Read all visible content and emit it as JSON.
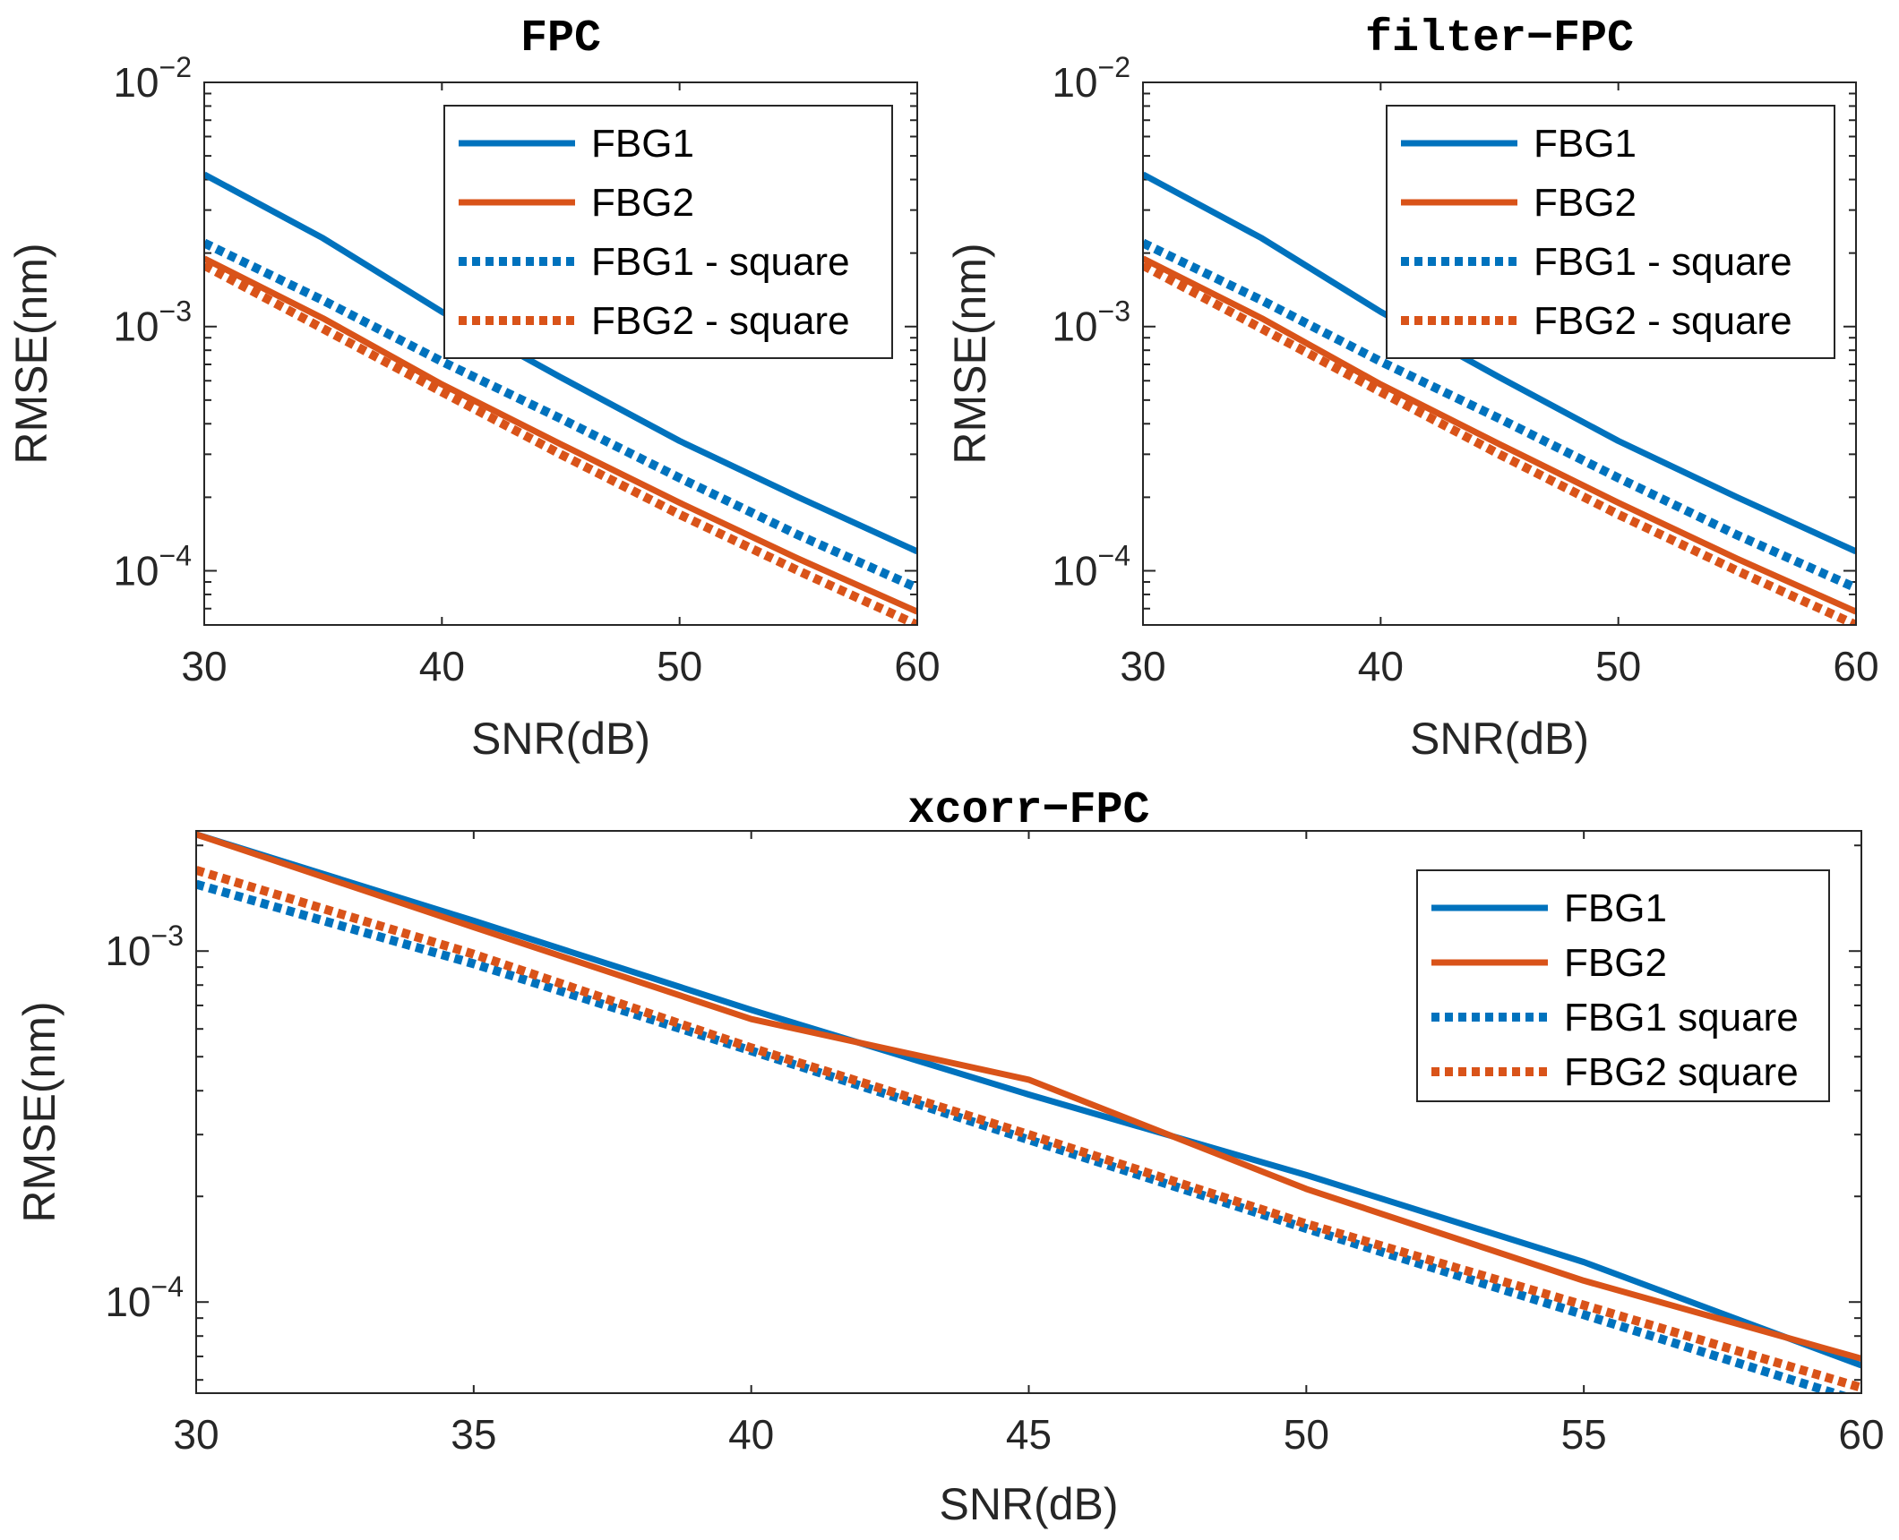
{
  "chart_data": [
    {
      "type": "line",
      "title": "FPC",
      "xlabel": "SNR(dB)",
      "ylabel": "RMSE(nm)",
      "yscale": "log",
      "xlim": [
        30,
        60
      ],
      "ylim": [
        6e-05,
        0.01
      ],
      "xticks": [
        "30",
        "40",
        "50",
        "60"
      ],
      "yticks": [
        {
          "base": "10",
          "exp": "−2"
        },
        {
          "base": "10",
          "exp": "−3"
        },
        {
          "base": "10",
          "exp": "−4"
        }
      ],
      "legend_position": "top-right",
      "x": [
        30,
        35,
        40,
        45,
        50,
        55,
        60
      ],
      "series": [
        {
          "name": "FBG1",
          "style": "solid",
          "color": "#0072BD",
          "values": [
            0.0042,
            0.0023,
            0.00115,
            0.00062,
            0.00034,
            0.0002,
            0.00012
          ]
        },
        {
          "name": "FBG2",
          "style": "solid",
          "color": "#D95319",
          "values": [
            0.0019,
            0.00108,
            0.00058,
            0.00033,
            0.00019,
            0.000112,
            6.8e-05
          ]
        },
        {
          "name": "FBG1 - square",
          "style": "dotted",
          "color": "#0072BD",
          "values": [
            0.0022,
            0.00128,
            0.00072,
            0.00042,
            0.00024,
            0.00014,
            8.5e-05
          ]
        },
        {
          "name": "FBG2 - square",
          "style": "dotted",
          "color": "#D95319",
          "values": [
            0.00178,
            0.00098,
            0.00054,
            0.0003,
            0.00017,
            0.0001,
            6e-05
          ]
        }
      ]
    },
    {
      "type": "line",
      "title": "filter−FPC",
      "xlabel": "SNR(dB)",
      "ylabel": "RMSE(nm)",
      "yscale": "log",
      "xlim": [
        30,
        60
      ],
      "ylim": [
        6e-05,
        0.01
      ],
      "xticks": [
        "30",
        "40",
        "50",
        "60"
      ],
      "yticks": [
        {
          "base": "10",
          "exp": "−2"
        },
        {
          "base": "10",
          "exp": "−3"
        },
        {
          "base": "10",
          "exp": "−4"
        }
      ],
      "legend_position": "top-right",
      "x": [
        30,
        35,
        40,
        45,
        50,
        55,
        60
      ],
      "series": [
        {
          "name": "FBG1",
          "style": "solid",
          "color": "#0072BD",
          "values": [
            0.0042,
            0.0023,
            0.00115,
            0.00062,
            0.00034,
            0.0002,
            0.00012
          ]
        },
        {
          "name": "FBG2",
          "style": "solid",
          "color": "#D95319",
          "values": [
            0.0019,
            0.00108,
            0.00058,
            0.00033,
            0.00019,
            0.000112,
            6.8e-05
          ]
        },
        {
          "name": "FBG1 - square",
          "style": "dotted",
          "color": "#0072BD",
          "values": [
            0.0022,
            0.00128,
            0.00072,
            0.00042,
            0.00024,
            0.00014,
            8.5e-05
          ]
        },
        {
          "name": "FBG2 - square",
          "style": "dotted",
          "color": "#D95319",
          "values": [
            0.00178,
            0.00098,
            0.00054,
            0.0003,
            0.00017,
            0.0001,
            6e-05
          ]
        }
      ]
    },
    {
      "type": "line",
      "title": "xcorr−FPC",
      "xlabel": "SNR(dB)",
      "ylabel": "RMSE(nm)",
      "yscale": "log",
      "xlim": [
        30,
        60
      ],
      "ylim": [
        5.5e-05,
        0.0022
      ],
      "xticks": [
        "30",
        "35",
        "40",
        "45",
        "50",
        "55",
        "60"
      ],
      "yticks": [
        {
          "base": "10",
          "exp": "−3"
        },
        {
          "base": "10",
          "exp": "−4"
        }
      ],
      "legend_position": "top-right",
      "x": [
        30,
        35,
        40,
        45,
        50,
        55,
        60
      ],
      "series": [
        {
          "name": "FBG1",
          "style": "solid",
          "color": "#0072BD",
          "values": [
            0.00215,
            0.00122,
            0.00068,
            0.00039,
            0.00023,
            0.00013,
            6.6e-05
          ]
        },
        {
          "name": "FBG2",
          "style": "solid",
          "color": "#D95319",
          "values": [
            0.00215,
            0.00117,
            0.00064,
            0.00043,
            0.00021,
            0.000115,
            6.9e-05
          ]
        },
        {
          "name": "FBG1 square",
          "style": "dotted",
          "color": "#0072BD",
          "values": [
            0.00155,
            0.00092,
            0.00052,
            0.00029,
            0.000162,
            9.2e-05,
            5.2e-05
          ]
        },
        {
          "name": "FBG2 square",
          "style": "dotted",
          "color": "#D95319",
          "values": [
            0.0017,
            0.00098,
            0.00053,
            0.0003,
            0.000167,
            9.8e-05,
            5.7e-05
          ]
        }
      ]
    }
  ]
}
